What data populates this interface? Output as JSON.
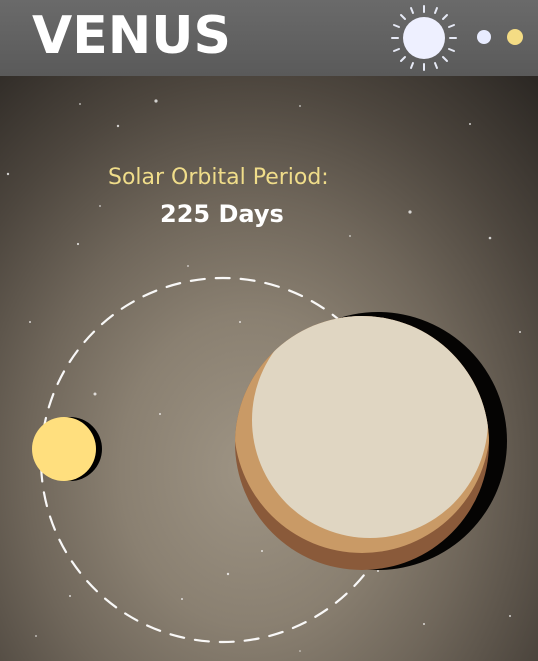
{
  "header": {
    "title": "VENUS",
    "icons": [
      "sun-icon",
      "small-planet-icon",
      "venus-planet-icon"
    ],
    "colors": {
      "bar": "#626262",
      "sun_icon": "#eef0ff",
      "small_planet": "#e8ecff",
      "venus_dot": "#f4dc84"
    }
  },
  "info": {
    "label": "Solar Orbital Period:",
    "value": "225 Days"
  },
  "colors": {
    "label_text": "#f0dd8a",
    "value_text": "#ffffff",
    "sun": "#ffdf7e",
    "venus_surface": "#e0d6c2",
    "venus_band": "#c99a66",
    "venus_shadow": "#8a5a3a",
    "orbit": "#ffffff"
  }
}
